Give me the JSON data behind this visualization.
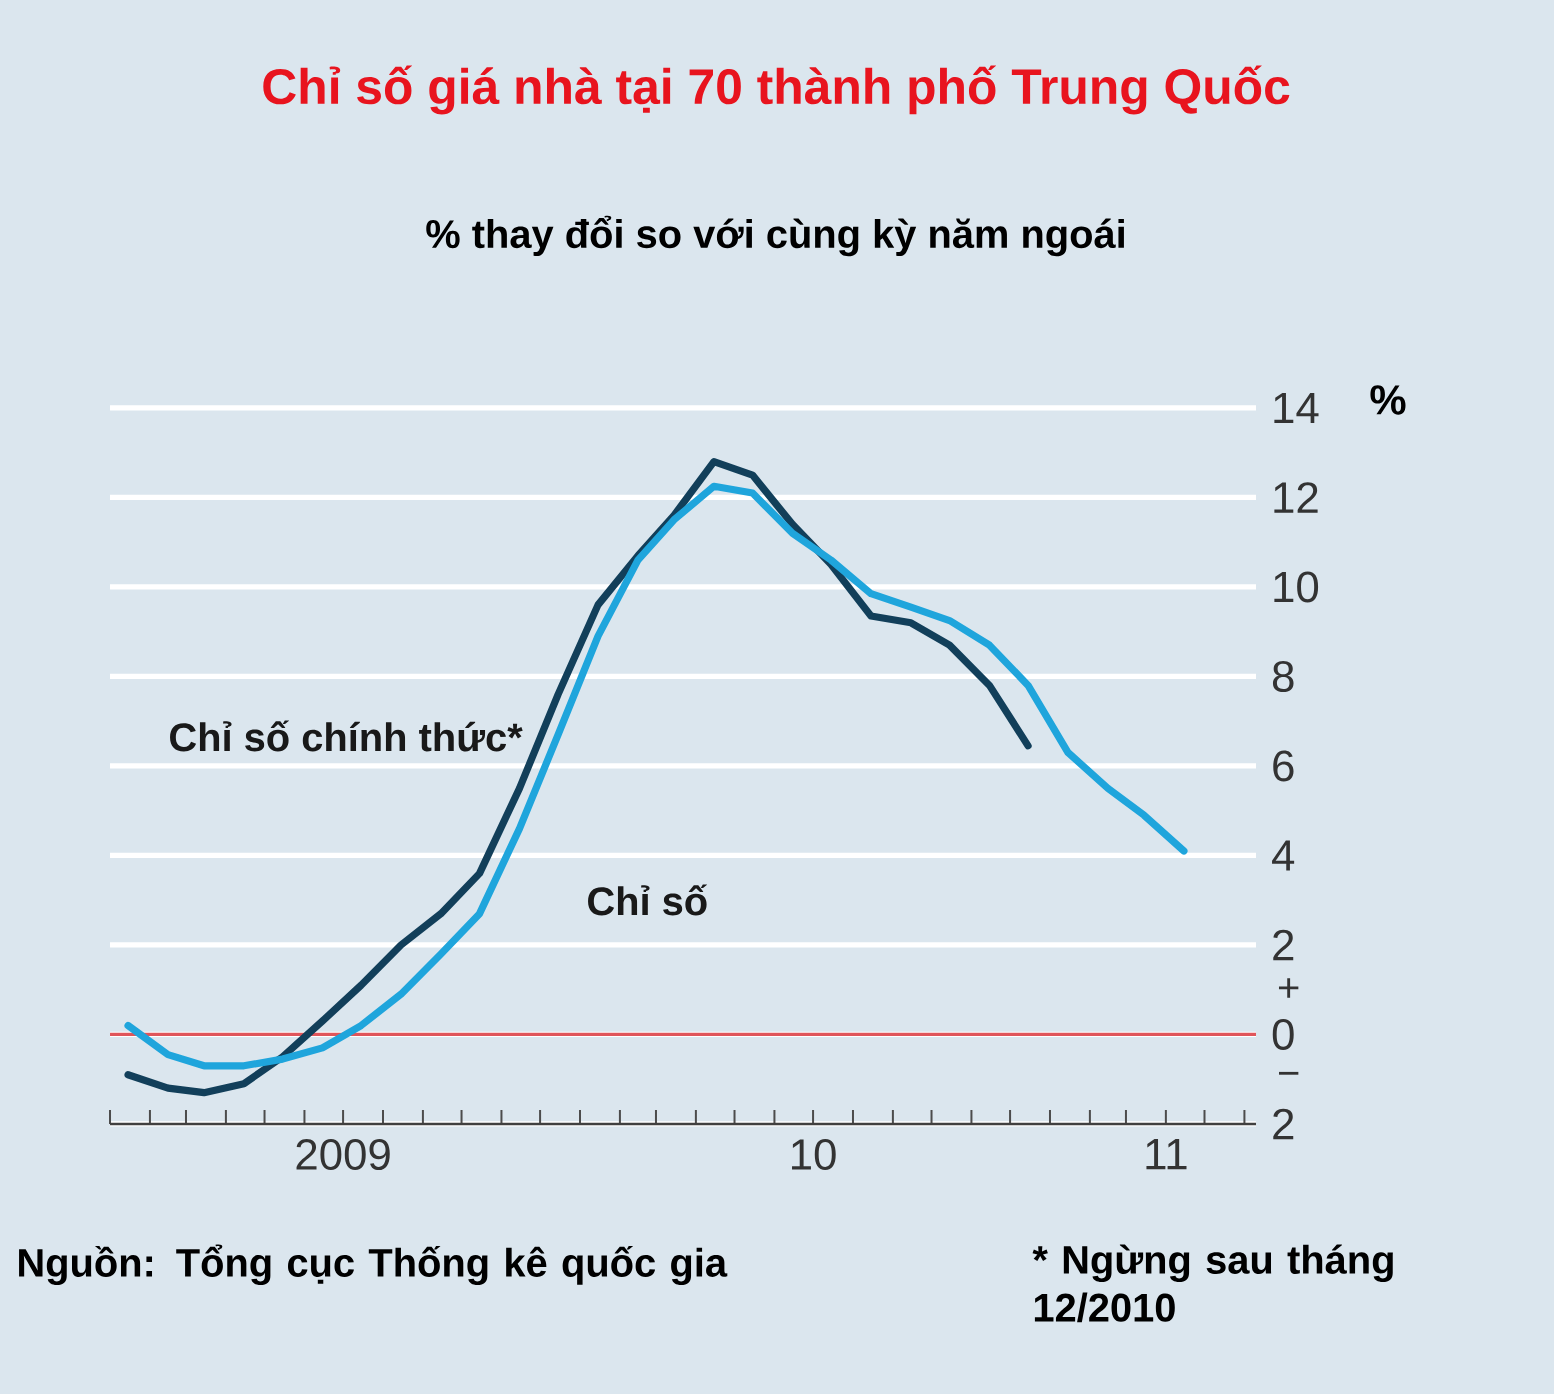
{
  "chart_data": {
    "type": "line",
    "title": "Chỉ số giá nhà tại 70 thành phố Trung Quốc",
    "subtitle": "% thay đổi so với cùng kỳ năm ngoái",
    "ylabel": "%",
    "xlim": [
      "2009-01-01",
      "2011-06-10"
    ],
    "xticks": [
      {
        "value": "2009-01-01",
        "label": null
      },
      {
        "value": "2009-02-01",
        "label": null
      },
      {
        "value": "2009-03-01",
        "label": null
      },
      {
        "value": "2009-04-01",
        "label": null
      },
      {
        "value": "2009-05-01",
        "label": null
      },
      {
        "value": "2009-06-01",
        "label": null
      },
      {
        "value": "2009-07-01",
        "label": "2009"
      },
      {
        "value": "2009-08-01",
        "label": null
      },
      {
        "value": "2009-09-01",
        "label": null
      },
      {
        "value": "2009-10-01",
        "label": null
      },
      {
        "value": "2009-11-01",
        "label": null
      },
      {
        "value": "2009-12-01",
        "label": null
      },
      {
        "value": "2010-01-01",
        "label": null
      },
      {
        "value": "2010-02-01",
        "label": null
      },
      {
        "value": "2010-03-01",
        "label": null
      },
      {
        "value": "2010-04-01",
        "label": null
      },
      {
        "value": "2010-05-01",
        "label": null
      },
      {
        "value": "2010-06-01",
        "label": null
      },
      {
        "value": "2010-07-01",
        "label": "10"
      },
      {
        "value": "2010-08-01",
        "label": null
      },
      {
        "value": "2010-09-01",
        "label": null
      },
      {
        "value": "2010-10-01",
        "label": null
      },
      {
        "value": "2010-11-01",
        "label": null
      },
      {
        "value": "2010-12-01",
        "label": null
      },
      {
        "value": "2011-01-01",
        "label": null
      },
      {
        "value": "2011-02-01",
        "label": null
      },
      {
        "value": "2011-03-01",
        "label": null
      },
      {
        "value": "2011-04-01",
        "label": "11"
      },
      {
        "value": "2011-05-01",
        "label": null
      },
      {
        "value": "2011-06-01",
        "label": null
      }
    ],
    "ylim": [
      -2,
      14
    ],
    "yticks": [
      {
        "value": -2,
        "label": "2"
      },
      0,
      2,
      4,
      6,
      8,
      10,
      12,
      14
    ],
    "grid": "y",
    "ref_lines": [
      {
        "axis": "y",
        "value": 0,
        "color": "#e0555a"
      }
    ],
    "annotations": [
      "+",
      "−",
      "Nguồn: Tổng cục Thống kê quốc gia",
      "* Ngừng sau tháng 12/2010"
    ],
    "series": [
      {
        "name": "Chỉ số chính thức*",
        "color": "#123f5a",
        "x": [
          "2009-01-15",
          "2009-02-15",
          "2009-03-15",
          "2009-04-15",
          "2009-05-15",
          "2009-06-15",
          "2009-07-15",
          "2009-08-15",
          "2009-09-15",
          "2009-10-15",
          "2009-11-15",
          "2009-12-15",
          "2010-01-15",
          "2010-02-15",
          "2010-03-15",
          "2010-04-15",
          "2010-05-15",
          "2010-06-15",
          "2010-07-15",
          "2010-08-15",
          "2010-09-15",
          "2010-10-15",
          "2010-11-15",
          "2010-12-15"
        ],
        "values": [
          -0.9,
          -1.2,
          -1.3,
          -1.1,
          -0.5,
          0.3,
          1.1,
          2.0,
          2.7,
          3.6,
          5.5,
          7.6,
          9.6,
          10.7,
          11.6,
          12.8,
          12.5,
          11.4,
          10.5,
          9.35,
          9.2,
          8.7,
          7.8,
          6.45
        ]
      },
      {
        "name": "Chỉ số",
        "color": "#1fa5dc",
        "x": [
          "2009-01-15",
          "2009-02-15",
          "2009-03-15",
          "2009-04-15",
          "2009-05-15",
          "2009-06-15",
          "2009-07-15",
          "2009-08-15",
          "2009-09-15",
          "2009-10-15",
          "2009-11-15",
          "2009-12-15",
          "2010-01-15",
          "2010-02-15",
          "2010-03-15",
          "2010-04-15",
          "2010-05-15",
          "2010-06-15",
          "2010-07-15",
          "2010-08-15",
          "2010-09-15",
          "2010-10-15",
          "2010-11-15",
          "2010-12-15",
          "2011-01-15",
          "2011-02-15",
          "2011-03-15",
          "2011-04-15"
        ],
        "values": [
          0.2,
          -0.45,
          -0.7,
          -0.7,
          -0.55,
          -0.3,
          0.2,
          0.9,
          1.8,
          2.7,
          4.6,
          6.7,
          8.9,
          10.6,
          11.5,
          12.25,
          12.1,
          11.2,
          10.6,
          9.85,
          9.55,
          9.25,
          8.7,
          7.8,
          6.3,
          5.5,
          4.9,
          4.1
        ]
      }
    ]
  }
}
